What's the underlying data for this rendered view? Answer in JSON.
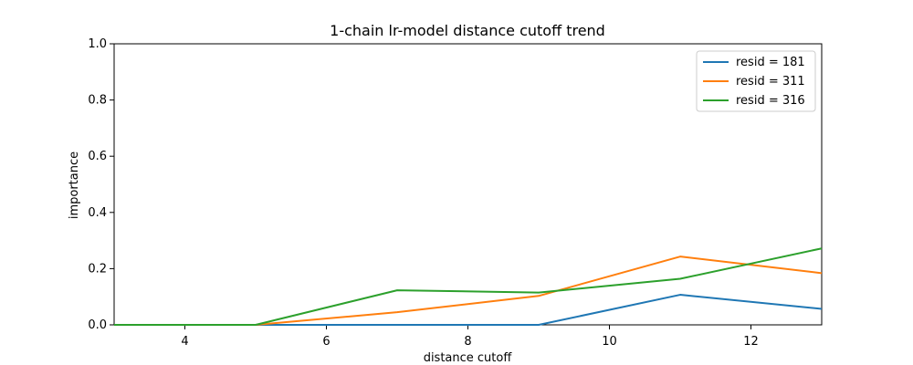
{
  "chart_data": {
    "type": "line",
    "title": "1-chain lr-model distance cutoff trend",
    "xlabel": "distance cutoff",
    "ylabel": "importance",
    "xlim": [
      3,
      13
    ],
    "ylim": [
      0,
      1
    ],
    "xticks": [
      4,
      6,
      8,
      10,
      12
    ],
    "yticks": [
      0.0,
      0.2,
      0.4,
      0.6,
      0.8,
      1.0
    ],
    "ytick_labels": [
      "0.0",
      "0.2",
      "0.4",
      "0.6",
      "0.8",
      "1.0"
    ],
    "grid": false,
    "legend_position": "top-right",
    "x": [
      3,
      5,
      7,
      9,
      11,
      13
    ],
    "series": [
      {
        "name": "resid = 181",
        "color": "#1f77b4",
        "values": [
          0,
          0,
          0,
          0,
          0.107,
          0.057
        ]
      },
      {
        "name": "resid = 311",
        "color": "#ff7f0e",
        "values": [
          0,
          0,
          0.045,
          0.103,
          0.243,
          0.184
        ]
      },
      {
        "name": "resid = 316",
        "color": "#2ca02c",
        "values": [
          0,
          0,
          0.123,
          0.115,
          0.164,
          0.272
        ]
      }
    ]
  }
}
